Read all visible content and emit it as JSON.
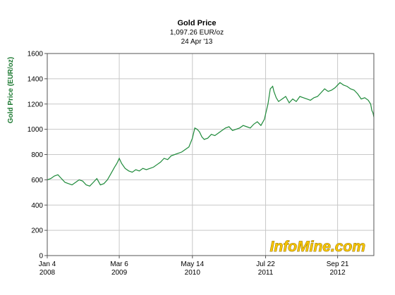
{
  "chart_data": {
    "type": "line",
    "title": "Gold Price",
    "subtitle_value": "1,097.26 EUR/oz",
    "subtitle_date": "24 Apr '13",
    "ylabel": "Gold Price (EUR/oz)",
    "xlabel": "",
    "ylim": [
      0,
      1600
    ],
    "yticks": [
      0,
      200,
      400,
      600,
      800,
      1000,
      1200,
      1400,
      1600
    ],
    "xlim": [
      "2008-01-04",
      "2013-04-24"
    ],
    "xticks": [
      {
        "date": "2008-01-04",
        "line1": "Jan 4",
        "line2": "2008"
      },
      {
        "date": "2009-03-06",
        "line1": "Mar 6",
        "line2": "2009"
      },
      {
        "date": "2010-05-14",
        "line1": "May 14",
        "line2": "2010"
      },
      {
        "date": "2011-07-22",
        "line1": "Jul 22",
        "line2": "2011"
      },
      {
        "date": "2012-09-21",
        "line1": "Sep 21",
        "line2": "2012"
      }
    ],
    "grid": true,
    "legend": "none",
    "watermark": "InfoMine.com",
    "colors": {
      "line": "#1e8a3a",
      "axis_label": "#1e7a33",
      "grid": "#c8c8c8"
    },
    "series": [
      {
        "x": [
          "2008-01-04",
          "2008-01-25",
          "2008-02-15",
          "2008-03-07",
          "2008-03-28",
          "2008-04-18",
          "2008-05-09",
          "2008-05-30",
          "2008-06-20",
          "2008-07-11",
          "2008-08-01",
          "2008-08-22",
          "2008-09-12",
          "2008-10-03",
          "2008-10-24",
          "2008-11-14",
          "2008-12-05",
          "2008-12-26",
          "2009-01-16",
          "2009-02-06",
          "2009-02-20",
          "2009-03-06",
          "2009-03-20",
          "2009-04-10",
          "2009-05-01",
          "2009-05-22",
          "2009-06-12",
          "2009-07-03",
          "2009-07-24",
          "2009-08-14",
          "2009-09-04",
          "2009-09-25",
          "2009-10-16",
          "2009-11-06",
          "2009-11-27",
          "2009-12-18",
          "2010-01-08",
          "2010-01-29",
          "2010-02-19",
          "2010-03-12",
          "2010-04-02",
          "2010-04-23",
          "2010-05-14",
          "2010-05-28",
          "2010-06-11",
          "2010-06-25",
          "2010-07-09",
          "2010-07-23",
          "2010-08-13",
          "2010-09-03",
          "2010-09-24",
          "2010-10-15",
          "2010-11-05",
          "2010-11-26",
          "2010-12-17",
          "2011-01-07",
          "2011-01-28",
          "2011-02-18",
          "2011-03-11",
          "2011-04-01",
          "2011-04-22",
          "2011-05-13",
          "2011-06-03",
          "2011-06-24",
          "2011-07-15",
          "2011-07-22",
          "2011-08-05",
          "2011-08-19",
          "2011-09-02",
          "2011-09-09",
          "2011-09-23",
          "2011-10-07",
          "2011-10-28",
          "2011-11-18",
          "2011-12-09",
          "2011-12-30",
          "2012-01-20",
          "2012-02-10",
          "2012-03-02",
          "2012-03-23",
          "2012-04-13",
          "2012-05-04",
          "2012-05-25",
          "2012-06-15",
          "2012-07-06",
          "2012-07-27",
          "2012-08-17",
          "2012-09-07",
          "2012-09-21",
          "2012-10-05",
          "2012-10-26",
          "2012-11-16",
          "2012-12-07",
          "2012-12-28",
          "2013-01-18",
          "2013-02-08",
          "2013-03-01",
          "2013-03-22",
          "2013-04-05",
          "2013-04-12",
          "2013-04-19",
          "2013-04-24"
        ],
        "y": [
          600,
          610,
          630,
          640,
          610,
          580,
          570,
          560,
          580,
          600,
          590,
          560,
          550,
          580,
          610,
          560,
          570,
          600,
          650,
          700,
          730,
          770,
          730,
          690,
          670,
          660,
          680,
          670,
          690,
          680,
          690,
          700,
          720,
          740,
          770,
          760,
          790,
          800,
          810,
          820,
          840,
          860,
          930,
          1010,
          1000,
          980,
          940,
          920,
          930,
          960,
          950,
          970,
          990,
          1010,
          1020,
          990,
          1000,
          1010,
          1030,
          1020,
          1010,
          1040,
          1060,
          1030,
          1080,
          1120,
          1200,
          1320,
          1340,
          1300,
          1250,
          1220,
          1240,
          1260,
          1210,
          1240,
          1220,
          1260,
          1250,
          1240,
          1230,
          1250,
          1260,
          1290,
          1320,
          1300,
          1310,
          1330,
          1350,
          1370,
          1350,
          1340,
          1320,
          1310,
          1280,
          1240,
          1250,
          1230,
          1200,
          1150,
          1130,
          1097
        ]
      }
    ]
  }
}
